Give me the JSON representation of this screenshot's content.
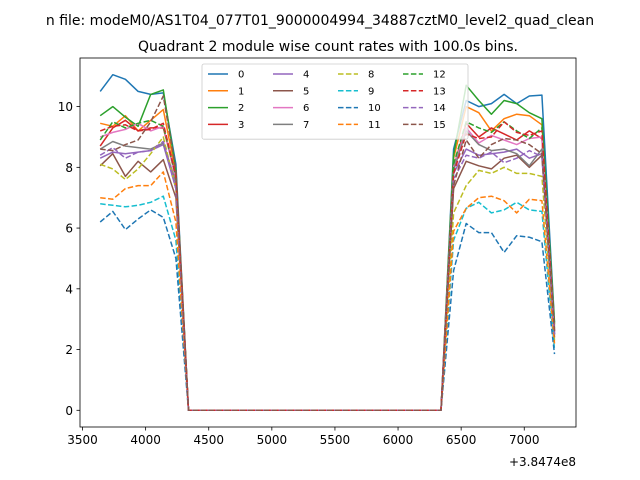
{
  "chart_data": {
    "type": "line",
    "suptitle": "n file: modeM0/AS1T04_077T01_9000004994_34887cztM0_level2_quad_clean",
    "title": "Quadrant 2 module wise count rates with 100.0s bins.",
    "xlabel": "",
    "ylabel": "",
    "x_offset_label": "+3.8474e8",
    "xlim": [
      3480,
      7410
    ],
    "ylim": [
      -0.55,
      11.6
    ],
    "xticks": [
      3500,
      4000,
      4500,
      5000,
      5500,
      6000,
      6500,
      7000
    ],
    "yticks": [
      0,
      2,
      4,
      6,
      8,
      10
    ],
    "legend_position": "upper center",
    "x": [
      3640,
      3740,
      3840,
      3940,
      4040,
      4140,
      4240,
      4340,
      4440,
      4540,
      4640,
      4740,
      4840,
      4940,
      5040,
      5140,
      5240,
      5340,
      5440,
      5540,
      5640,
      5740,
      5840,
      5940,
      6040,
      6140,
      6240,
      6340,
      6440,
      6540,
      6640,
      6740,
      6840,
      6940,
      7040,
      7140,
      7240
    ],
    "series": [
      {
        "name": "0",
        "color": "#1f77b4",
        "dash": "solid",
        "values": [
          10.5,
          11.05,
          10.9,
          10.5,
          10.4,
          10.45,
          8.1,
          0,
          0,
          0,
          0,
          0,
          0,
          0,
          0,
          0,
          0,
          0,
          0,
          0,
          0,
          0,
          0,
          0,
          0,
          0,
          0,
          0,
          8.6,
          10.2,
          10.0,
          10.1,
          10.4,
          10.1,
          10.35,
          10.38,
          2.9
        ]
      },
      {
        "name": "1",
        "color": "#ff7f0e",
        "dash": "solid",
        "values": [
          9.45,
          9.35,
          9.7,
          9.2,
          9.55,
          9.9,
          7.8,
          0,
          0,
          0,
          0,
          0,
          0,
          0,
          0,
          0,
          0,
          0,
          0,
          0,
          0,
          0,
          0,
          0,
          0,
          0,
          0,
          0,
          8.3,
          10.0,
          9.8,
          9.2,
          9.6,
          9.75,
          9.7,
          9.4,
          2.8
        ]
      },
      {
        "name": "2",
        "color": "#2ca02c",
        "dash": "solid",
        "values": [
          9.7,
          10.0,
          9.65,
          9.35,
          10.4,
          10.55,
          7.9,
          0,
          0,
          0,
          0,
          0,
          0,
          0,
          0,
          0,
          0,
          0,
          0,
          0,
          0,
          0,
          0,
          0,
          0,
          0,
          0,
          0,
          8.4,
          10.7,
          10.2,
          9.75,
          10.2,
          10.1,
          9.8,
          9.6,
          2.85
        ]
      },
      {
        "name": "3",
        "color": "#d62728",
        "dash": "solid",
        "values": [
          8.7,
          9.3,
          9.55,
          9.2,
          9.3,
          9.3,
          7.7,
          0,
          0,
          0,
          0,
          0,
          0,
          0,
          0,
          0,
          0,
          0,
          0,
          0,
          0,
          0,
          0,
          0,
          0,
          0,
          0,
          0,
          8.0,
          9.45,
          9.0,
          9.3,
          9.1,
          8.9,
          9.2,
          8.95,
          2.6
        ]
      },
      {
        "name": "4",
        "color": "#9467bd",
        "dash": "solid",
        "values": [
          8.3,
          8.5,
          8.45,
          8.5,
          8.55,
          8.75,
          7.3,
          0,
          0,
          0,
          0,
          0,
          0,
          0,
          0,
          0,
          0,
          0,
          0,
          0,
          0,
          0,
          0,
          0,
          0,
          0,
          0,
          0,
          7.8,
          8.6,
          8.4,
          8.45,
          8.5,
          8.6,
          8.3,
          8.45,
          2.5
        ]
      },
      {
        "name": "5",
        "color": "#8c564b",
        "dash": "solid",
        "values": [
          8.05,
          8.45,
          7.7,
          8.2,
          7.85,
          8.25,
          7.0,
          0,
          0,
          0,
          0,
          0,
          0,
          0,
          0,
          0,
          0,
          0,
          0,
          0,
          0,
          0,
          0,
          0,
          0,
          0,
          0,
          0,
          7.3,
          8.2,
          8.05,
          7.95,
          8.3,
          8.4,
          8.0,
          8.4,
          2.4
        ]
      },
      {
        "name": "6",
        "color": "#e377c2",
        "dash": "solid",
        "values": [
          9.0,
          9.15,
          9.25,
          9.45,
          9.2,
          9.35,
          7.6,
          0,
          0,
          0,
          0,
          0,
          0,
          0,
          0,
          0,
          0,
          0,
          0,
          0,
          0,
          0,
          0,
          0,
          0,
          0,
          0,
          0,
          8.0,
          9.3,
          8.8,
          9.05,
          8.9,
          8.75,
          8.95,
          9.0,
          2.6
        ]
      },
      {
        "name": "7",
        "color": "#7f7f7f",
        "dash": "solid",
        "values": [
          8.6,
          8.85,
          8.7,
          8.65,
          8.6,
          8.8,
          7.5,
          0,
          0,
          0,
          0,
          0,
          0,
          0,
          0,
          0,
          0,
          0,
          0,
          0,
          0,
          0,
          0,
          0,
          0,
          0,
          0,
          0,
          7.9,
          9.2,
          8.75,
          8.55,
          8.6,
          8.45,
          8.05,
          8.6,
          2.5
        ]
      },
      {
        "name": "8",
        "color": "#bcbd22",
        "dash": "dashed",
        "values": [
          8.1,
          7.95,
          7.6,
          7.95,
          8.45,
          9.0,
          7.3,
          0,
          0,
          0,
          0,
          0,
          0,
          0,
          0,
          0,
          0,
          0,
          0,
          0,
          0,
          0,
          0,
          0,
          0,
          0,
          0,
          0,
          6.5,
          7.4,
          7.9,
          7.8,
          8.0,
          7.8,
          7.8,
          7.7,
          2.3
        ]
      },
      {
        "name": "9",
        "color": "#17becf",
        "dash": "dashed",
        "values": [
          6.8,
          6.75,
          6.7,
          6.75,
          6.85,
          7.05,
          5.6,
          0,
          0,
          0,
          0,
          0,
          0,
          0,
          0,
          0,
          0,
          0,
          0,
          0,
          0,
          0,
          0,
          0,
          0,
          0,
          0,
          0,
          5.6,
          6.65,
          6.85,
          6.5,
          6.6,
          6.85,
          6.6,
          6.55,
          2.0
        ]
      },
      {
        "name": "10",
        "color": "#1f77b4",
        "dash": "dashed",
        "values": [
          6.2,
          6.55,
          5.95,
          6.3,
          6.6,
          6.35,
          5.0,
          0,
          0,
          0,
          0,
          0,
          0,
          0,
          0,
          0,
          0,
          0,
          0,
          0,
          0,
          0,
          0,
          0,
          0,
          0,
          0,
          0,
          4.6,
          6.15,
          5.85,
          5.85,
          5.2,
          5.75,
          5.7,
          5.55,
          1.85
        ]
      },
      {
        "name": "11",
        "color": "#ff7f0e",
        "dash": "dashed",
        "values": [
          7.0,
          6.95,
          7.3,
          7.4,
          7.4,
          7.85,
          6.2,
          0,
          0,
          0,
          0,
          0,
          0,
          0,
          0,
          0,
          0,
          0,
          0,
          0,
          0,
          0,
          0,
          0,
          0,
          0,
          0,
          0,
          5.9,
          6.65,
          7.0,
          7.05,
          6.9,
          6.5,
          6.95,
          6.9,
          2.2
        ]
      },
      {
        "name": "12",
        "color": "#2ca02c",
        "dash": "dashed",
        "values": [
          8.9,
          9.5,
          9.3,
          9.45,
          9.55,
          9.35,
          7.7,
          0,
          0,
          0,
          0,
          0,
          0,
          0,
          0,
          0,
          0,
          0,
          0,
          0,
          0,
          0,
          0,
          0,
          0,
          0,
          0,
          0,
          8.1,
          9.5,
          9.3,
          9.15,
          9.5,
          9.2,
          8.95,
          9.3,
          2.7
        ]
      },
      {
        "name": "13",
        "color": "#d62728",
        "dash": "dashed",
        "values": [
          9.2,
          9.35,
          9.4,
          9.2,
          9.25,
          9.45,
          7.7,
          0,
          0,
          0,
          0,
          0,
          0,
          0,
          0,
          0,
          0,
          0,
          0,
          0,
          0,
          0,
          0,
          0,
          0,
          0,
          0,
          0,
          7.8,
          9.1,
          8.95,
          9.0,
          9.5,
          9.15,
          9.05,
          9.2,
          2.6
        ]
      },
      {
        "name": "14",
        "color": "#9467bd",
        "dash": "dashed",
        "values": [
          8.4,
          8.65,
          8.3,
          8.5,
          8.55,
          8.85,
          7.3,
          0,
          0,
          0,
          0,
          0,
          0,
          0,
          0,
          0,
          0,
          0,
          0,
          0,
          0,
          0,
          0,
          0,
          0,
          0,
          0,
          0,
          7.6,
          8.4,
          8.3,
          8.5,
          8.15,
          8.3,
          8.55,
          8.35,
          2.5
        ]
      },
      {
        "name": "15",
        "color": "#8c564b",
        "dash": "dashed",
        "values": [
          8.6,
          8.55,
          8.75,
          8.9,
          9.5,
          10.35,
          7.9,
          0,
          0,
          0,
          0,
          0,
          0,
          0,
          0,
          0,
          0,
          0,
          0,
          0,
          0,
          0,
          0,
          0,
          0,
          0,
          0,
          0,
          7.4,
          8.9,
          8.3,
          8.75,
          8.95,
          8.9,
          8.75,
          8.45,
          2.6
        ]
      }
    ]
  }
}
